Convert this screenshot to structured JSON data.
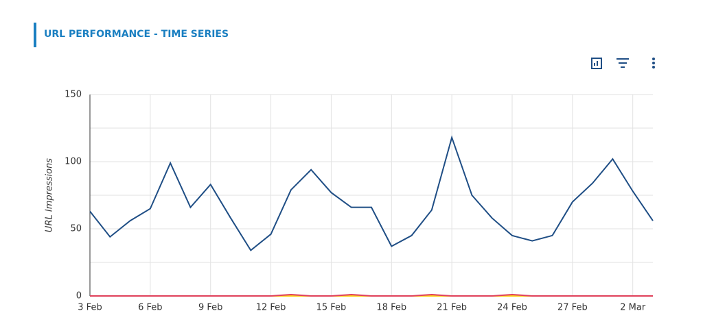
{
  "chart_data": {
    "type": "line",
    "title": "URL PERFORMANCE - TIME SERIES",
    "y_label": "URL Impressions",
    "categories": [
      "3 Feb",
      null,
      null,
      "6 Feb",
      null,
      null,
      "9 Feb",
      null,
      null,
      "12 Feb",
      null,
      null,
      "15 Feb",
      null,
      null,
      "18 Feb",
      null,
      null,
      "21 Feb",
      null,
      null,
      "24 Feb",
      null,
      null,
      "27 Feb",
      null,
      null,
      "2 Mar",
      null
    ],
    "series": [
      {
        "color": "#fcd116",
        "values": [
          0,
          0,
          0,
          0,
          0,
          0,
          0,
          0,
          0,
          0,
          0,
          0,
          0,
          0,
          0,
          0,
          0,
          0,
          0,
          0,
          0,
          0,
          0,
          0,
          0,
          0,
          0,
          0,
          0
        ]
      },
      {
        "color": "#e0405a",
        "values": [
          0,
          0,
          0,
          0,
          0,
          0,
          0,
          0,
          0,
          0,
          1,
          0,
          0,
          1,
          0,
          0,
          0,
          1,
          0,
          0,
          0,
          1,
          0,
          0,
          0,
          0,
          0,
          0,
          0
        ]
      },
      {
        "color": "#1f4e85",
        "values": [
          63,
          44,
          56,
          65,
          99,
          66,
          83,
          58,
          34,
          46,
          79,
          94,
          77,
          66,
          66,
          37,
          45,
          64,
          118,
          75,
          58,
          45,
          41,
          45,
          70,
          84,
          102,
          78,
          56
        ]
      }
    ],
    "ylim": [
      0,
      150
    ],
    "yticks": [
      0,
      50,
      100,
      150
    ],
    "minor_yticks": [
      25,
      75,
      125
    ],
    "grid": true
  }
}
